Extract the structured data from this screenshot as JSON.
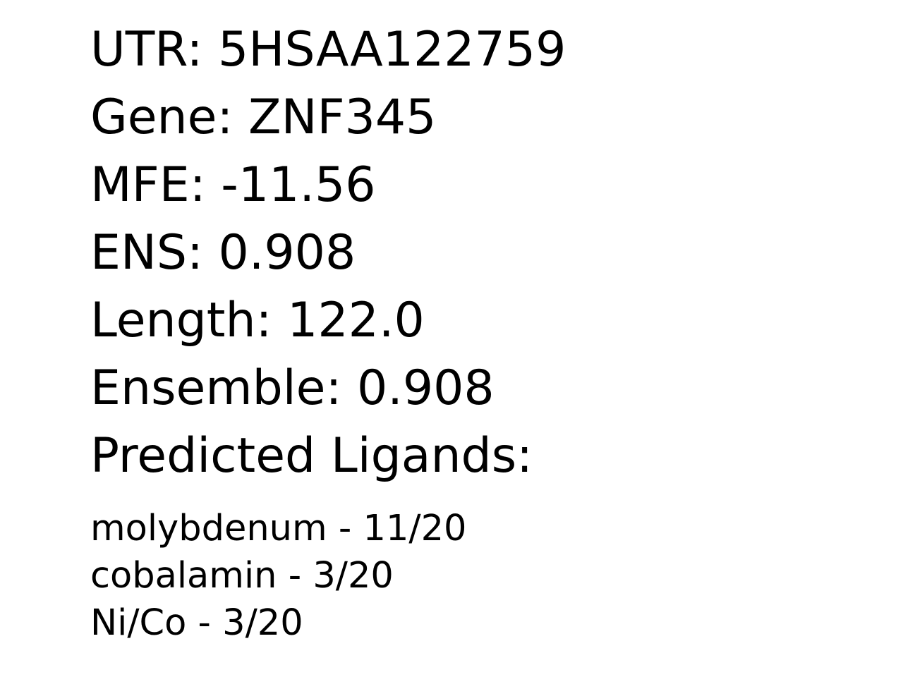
{
  "record": {
    "utr": {
      "label": "UTR:",
      "value": "5HSAA122759"
    },
    "gene": {
      "label": "Gene:",
      "value": "ZNF345"
    },
    "mfe": {
      "label": "MFE:",
      "value": "-11.56"
    },
    "ens": {
      "label": "ENS:",
      "value": "0.908"
    },
    "length": {
      "label": "Length:",
      "value": "122.0"
    },
    "ensemble": {
      "label": "Ensemble:",
      "value": "0.908"
    }
  },
  "ligands_heading": "Predicted Ligands:",
  "ligands": [
    {
      "name": "molybdenum",
      "separator": "-",
      "score": "11/20"
    },
    {
      "name": "cobalamin",
      "separator": "-",
      "score": "3/20"
    },
    {
      "name": "Ni/Co",
      "separator": "-",
      "score": "3/20"
    }
  ]
}
